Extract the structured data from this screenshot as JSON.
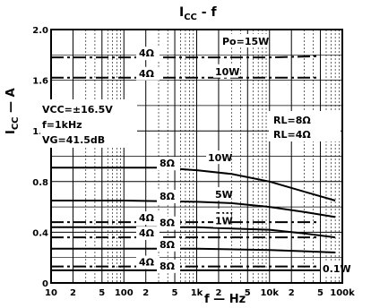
{
  "chart_data": {
    "type": "line",
    "title": "I",
    "title_sub": "CC",
    "title_rest": " - f",
    "xlabel": "f — Hz",
    "ylabel": "I",
    "ylabel_sub": "CC",
    "ylabel_rest": " — A",
    "xscale": "log",
    "xlim": [
      10,
      100000
    ],
    "ylim": [
      0,
      2.0
    ],
    "grid": true,
    "x_ticks": [
      {
        "v": 10,
        "label": "10"
      },
      {
        "v": 20,
        "label": "2"
      },
      {
        "v": 50,
        "label": "5"
      },
      {
        "v": 100,
        "label": "100"
      },
      {
        "v": 200,
        "label": "2"
      },
      {
        "v": 500,
        "label": "5"
      },
      {
        "v": 1000,
        "label": "1k"
      },
      {
        "v": 2000,
        "label": "2"
      },
      {
        "v": 5000,
        "label": "5"
      },
      {
        "v": 10000,
        "label": "10k"
      },
      {
        "v": 20000,
        "label": "2"
      },
      {
        "v": 50000,
        "label": "5"
      },
      {
        "v": 100000,
        "label": "100k"
      }
    ],
    "y_ticks": [
      {
        "v": 0,
        "label": "0"
      },
      {
        "v": 0.4,
        "label": "0.4"
      },
      {
        "v": 0.8,
        "label": "0.8"
      },
      {
        "v": 1.2,
        "label": "1.2"
      },
      {
        "v": 1.6,
        "label": "1.6"
      },
      {
        "v": 2.0,
        "label": "2.0"
      }
    ],
    "conditions": [
      "VCC=±16.5V",
      "f=1kHz",
      "VG=41.5dB"
    ],
    "legend": [
      "RL=8Ω",
      "RL=4Ω"
    ],
    "series": [
      {
        "label": "4Ω",
        "power": "Po=15W",
        "dash": true,
        "x": [
          10,
          100,
          1000,
          10000,
          50000
        ],
        "y": [
          1.78,
          1.78,
          1.78,
          1.78,
          1.79
        ]
      },
      {
        "label": "4Ω",
        "power": "10W",
        "dash": true,
        "x": [
          10,
          100,
          1000,
          10000,
          50000
        ],
        "y": [
          1.62,
          1.62,
          1.62,
          1.62,
          1.62
        ]
      },
      {
        "label": "8Ω",
        "power": "10W",
        "dash": false,
        "x": [
          10,
          100,
          300,
          1000,
          3000,
          10000,
          30000,
          80000
        ],
        "y": [
          0.91,
          0.91,
          0.91,
          0.89,
          0.86,
          0.8,
          0.72,
          0.65
        ]
      },
      {
        "label": "8Ω",
        "power": "5W",
        "dash": false,
        "x": [
          10,
          100,
          1000,
          3000,
          10000,
          30000,
          80000
        ],
        "y": [
          0.65,
          0.65,
          0.64,
          0.63,
          0.6,
          0.56,
          0.52
        ]
      },
      {
        "label": "4Ω",
        "power": "1W",
        "dash": true,
        "x": [
          10,
          100,
          1000,
          10000,
          50000
        ],
        "y": [
          0.48,
          0.48,
          0.48,
          0.48,
          0.48
        ]
      },
      {
        "label": "8Ω",
        "power": "1W",
        "dash": false,
        "x": [
          10,
          100,
          1000,
          3000,
          10000,
          30000,
          80000
        ],
        "y": [
          0.44,
          0.44,
          0.44,
          0.43,
          0.42,
          0.39,
          0.36
        ]
      },
      {
        "label": "4Ω",
        "power": "",
        "dash": true,
        "x": [
          10,
          100,
          1000,
          10000,
          50000
        ],
        "y": [
          0.36,
          0.36,
          0.36,
          0.36,
          0.36
        ]
      },
      {
        "label": "8Ω",
        "power": "",
        "dash": false,
        "x": [
          10,
          100,
          1000,
          10000,
          30000,
          80000
        ],
        "y": [
          0.27,
          0.27,
          0.27,
          0.26,
          0.25,
          0.24
        ]
      },
      {
        "label": "4Ω",
        "power": "0.1W",
        "dash": true,
        "x": [
          10,
          100,
          1000,
          10000,
          50000
        ],
        "y": [
          0.13,
          0.13,
          0.13,
          0.13,
          0.13
        ]
      },
      {
        "label": "8Ω",
        "power": "",
        "dash": false,
        "x": [
          10,
          100,
          1000,
          10000,
          50000
        ],
        "y": [
          0.1,
          0.1,
          0.1,
          0.1,
          0.1
        ]
      }
    ]
  }
}
